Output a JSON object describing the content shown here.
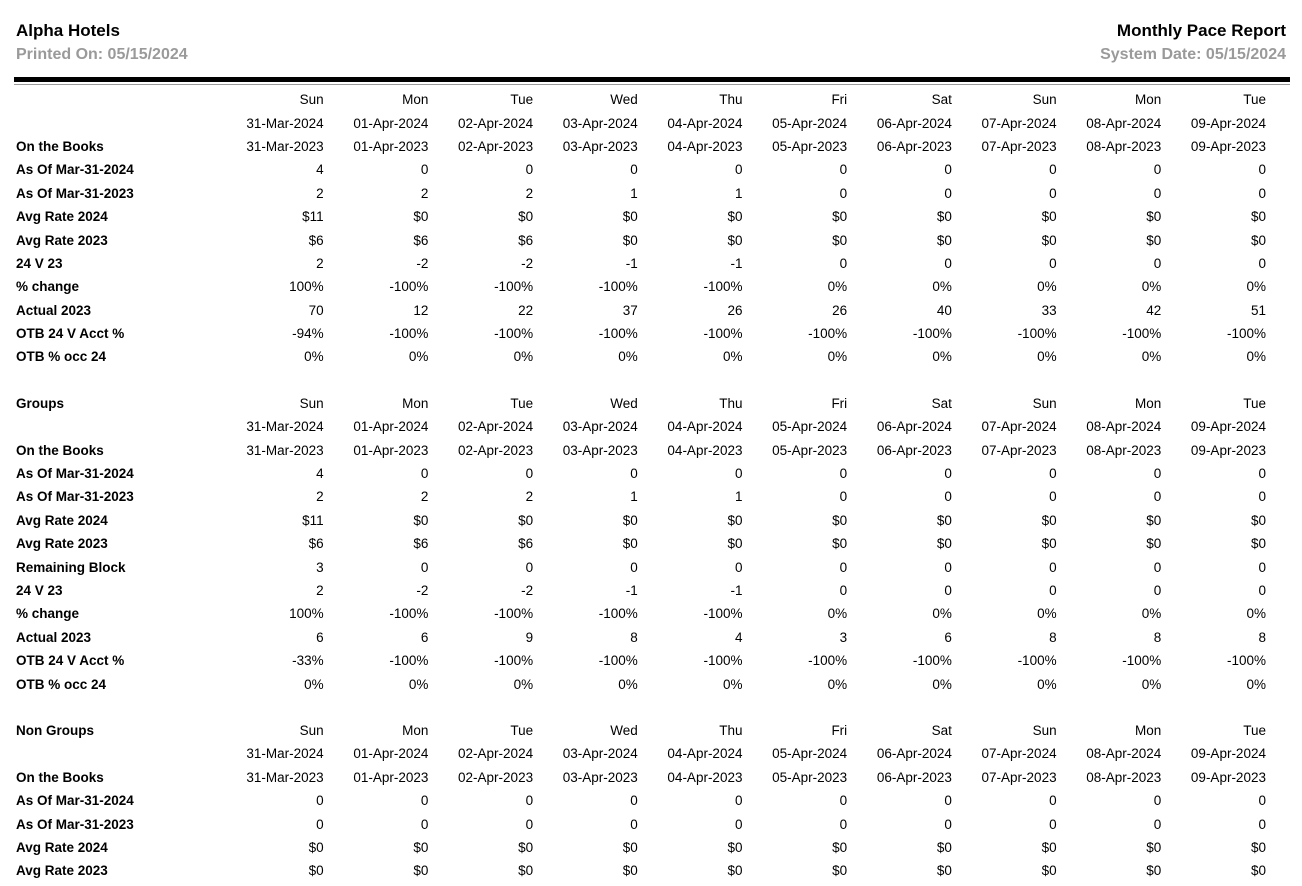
{
  "page": {
    "company": "Alpha Hotels",
    "printed_on": "Printed On: 05/15/2024",
    "report_title": "Monthly Pace Report",
    "system_date": "System Date: 05/15/2024"
  },
  "colors": {
    "text": "#000000",
    "muted": "#9a9a9a",
    "rule": "#000000"
  },
  "labels": {
    "on_the_books": "On the Books"
  },
  "columns": {
    "days": [
      "Sun",
      "Mon",
      "Tue",
      "Wed",
      "Thu",
      "Fri",
      "Sat",
      "Sun",
      "Mon",
      "Tue"
    ],
    "dates_2024": [
      "31-Mar-2024",
      "01-Apr-2024",
      "02-Apr-2024",
      "03-Apr-2024",
      "04-Apr-2024",
      "05-Apr-2024",
      "06-Apr-2024",
      "07-Apr-2024",
      "08-Apr-2024",
      "09-Apr-2024"
    ],
    "dates_2023": [
      "31-Mar-2023",
      "01-Apr-2023",
      "02-Apr-2023",
      "03-Apr-2023",
      "04-Apr-2023",
      "05-Apr-2023",
      "06-Apr-2023",
      "07-Apr-2023",
      "08-Apr-2023",
      "09-Apr-2023"
    ]
  },
  "sections": [
    {
      "id": "total",
      "title": "",
      "rows": [
        {
          "label": "As Of Mar-31-2024",
          "values": [
            "4",
            "0",
            "0",
            "0",
            "0",
            "0",
            "0",
            "0",
            "0",
            "0"
          ]
        },
        {
          "label": "As Of Mar-31-2023",
          "values": [
            "2",
            "2",
            "2",
            "1",
            "1",
            "0",
            "0",
            "0",
            "0",
            "0"
          ]
        },
        {
          "label": "Avg Rate 2024",
          "values": [
            "$11",
            "$0",
            "$0",
            "$0",
            "$0",
            "$0",
            "$0",
            "$0",
            "$0",
            "$0"
          ]
        },
        {
          "label": "Avg Rate 2023",
          "values": [
            "$6",
            "$6",
            "$6",
            "$0",
            "$0",
            "$0",
            "$0",
            "$0",
            "$0",
            "$0"
          ]
        },
        {
          "label": "24 V 23",
          "values": [
            "2",
            "-2",
            "-2",
            "-1",
            "-1",
            "0",
            "0",
            "0",
            "0",
            "0"
          ]
        },
        {
          "label": "% change",
          "values": [
            "100%",
            "-100%",
            "-100%",
            "-100%",
            "-100%",
            "0%",
            "0%",
            "0%",
            "0%",
            "0%"
          ]
        },
        {
          "label": "Actual 2023",
          "values": [
            "70",
            "12",
            "22",
            "37",
            "26",
            "26",
            "40",
            "33",
            "42",
            "51"
          ]
        },
        {
          "label": "OTB 24 V Acct %",
          "values": [
            "-94%",
            "-100%",
            "-100%",
            "-100%",
            "-100%",
            "-100%",
            "-100%",
            "-100%",
            "-100%",
            "-100%"
          ]
        },
        {
          "label": "OTB % occ 24",
          "values": [
            "0%",
            "0%",
            "0%",
            "0%",
            "0%",
            "0%",
            "0%",
            "0%",
            "0%",
            "0%"
          ]
        }
      ]
    },
    {
      "id": "groups",
      "title": "Groups",
      "rows": [
        {
          "label": "As Of Mar-31-2024",
          "values": [
            "4",
            "0",
            "0",
            "0",
            "0",
            "0",
            "0",
            "0",
            "0",
            "0"
          ]
        },
        {
          "label": "As Of Mar-31-2023",
          "values": [
            "2",
            "2",
            "2",
            "1",
            "1",
            "0",
            "0",
            "0",
            "0",
            "0"
          ]
        },
        {
          "label": "Avg Rate 2024",
          "values": [
            "$11",
            "$0",
            "$0",
            "$0",
            "$0",
            "$0",
            "$0",
            "$0",
            "$0",
            "$0"
          ]
        },
        {
          "label": "Avg Rate 2023",
          "values": [
            "$6",
            "$6",
            "$6",
            "$0",
            "$0",
            "$0",
            "$0",
            "$0",
            "$0",
            "$0"
          ]
        },
        {
          "label": "Remaining Block",
          "values": [
            "3",
            "0",
            "0",
            "0",
            "0",
            "0",
            "0",
            "0",
            "0",
            "0"
          ]
        },
        {
          "label": "24 V 23",
          "values": [
            "2",
            "-2",
            "-2",
            "-1",
            "-1",
            "0",
            "0",
            "0",
            "0",
            "0"
          ]
        },
        {
          "label": "% change",
          "values": [
            "100%",
            "-100%",
            "-100%",
            "-100%",
            "-100%",
            "0%",
            "0%",
            "0%",
            "0%",
            "0%"
          ]
        },
        {
          "label": "Actual 2023",
          "values": [
            "6",
            "6",
            "9",
            "8",
            "4",
            "3",
            "6",
            "8",
            "8",
            "8"
          ]
        },
        {
          "label": "OTB 24 V Acct %",
          "values": [
            "-33%",
            "-100%",
            "-100%",
            "-100%",
            "-100%",
            "-100%",
            "-100%",
            "-100%",
            "-100%",
            "-100%"
          ]
        },
        {
          "label": "OTB % occ 24",
          "values": [
            "0%",
            "0%",
            "0%",
            "0%",
            "0%",
            "0%",
            "0%",
            "0%",
            "0%",
            "0%"
          ]
        }
      ]
    },
    {
      "id": "non-groups",
      "title": "Non Groups",
      "rows": [
        {
          "label": "As Of Mar-31-2024",
          "values": [
            "0",
            "0",
            "0",
            "0",
            "0",
            "0",
            "0",
            "0",
            "0",
            "0"
          ]
        },
        {
          "label": "As Of Mar-31-2023",
          "values": [
            "0",
            "0",
            "0",
            "0",
            "0",
            "0",
            "0",
            "0",
            "0",
            "0"
          ]
        },
        {
          "label": "Avg Rate 2024",
          "values": [
            "$0",
            "$0",
            "$0",
            "$0",
            "$0",
            "$0",
            "$0",
            "$0",
            "$0",
            "$0"
          ]
        },
        {
          "label": "Avg Rate 2023",
          "values": [
            "$0",
            "$0",
            "$0",
            "$0",
            "$0",
            "$0",
            "$0",
            "$0",
            "$0",
            "$0"
          ]
        }
      ]
    }
  ]
}
